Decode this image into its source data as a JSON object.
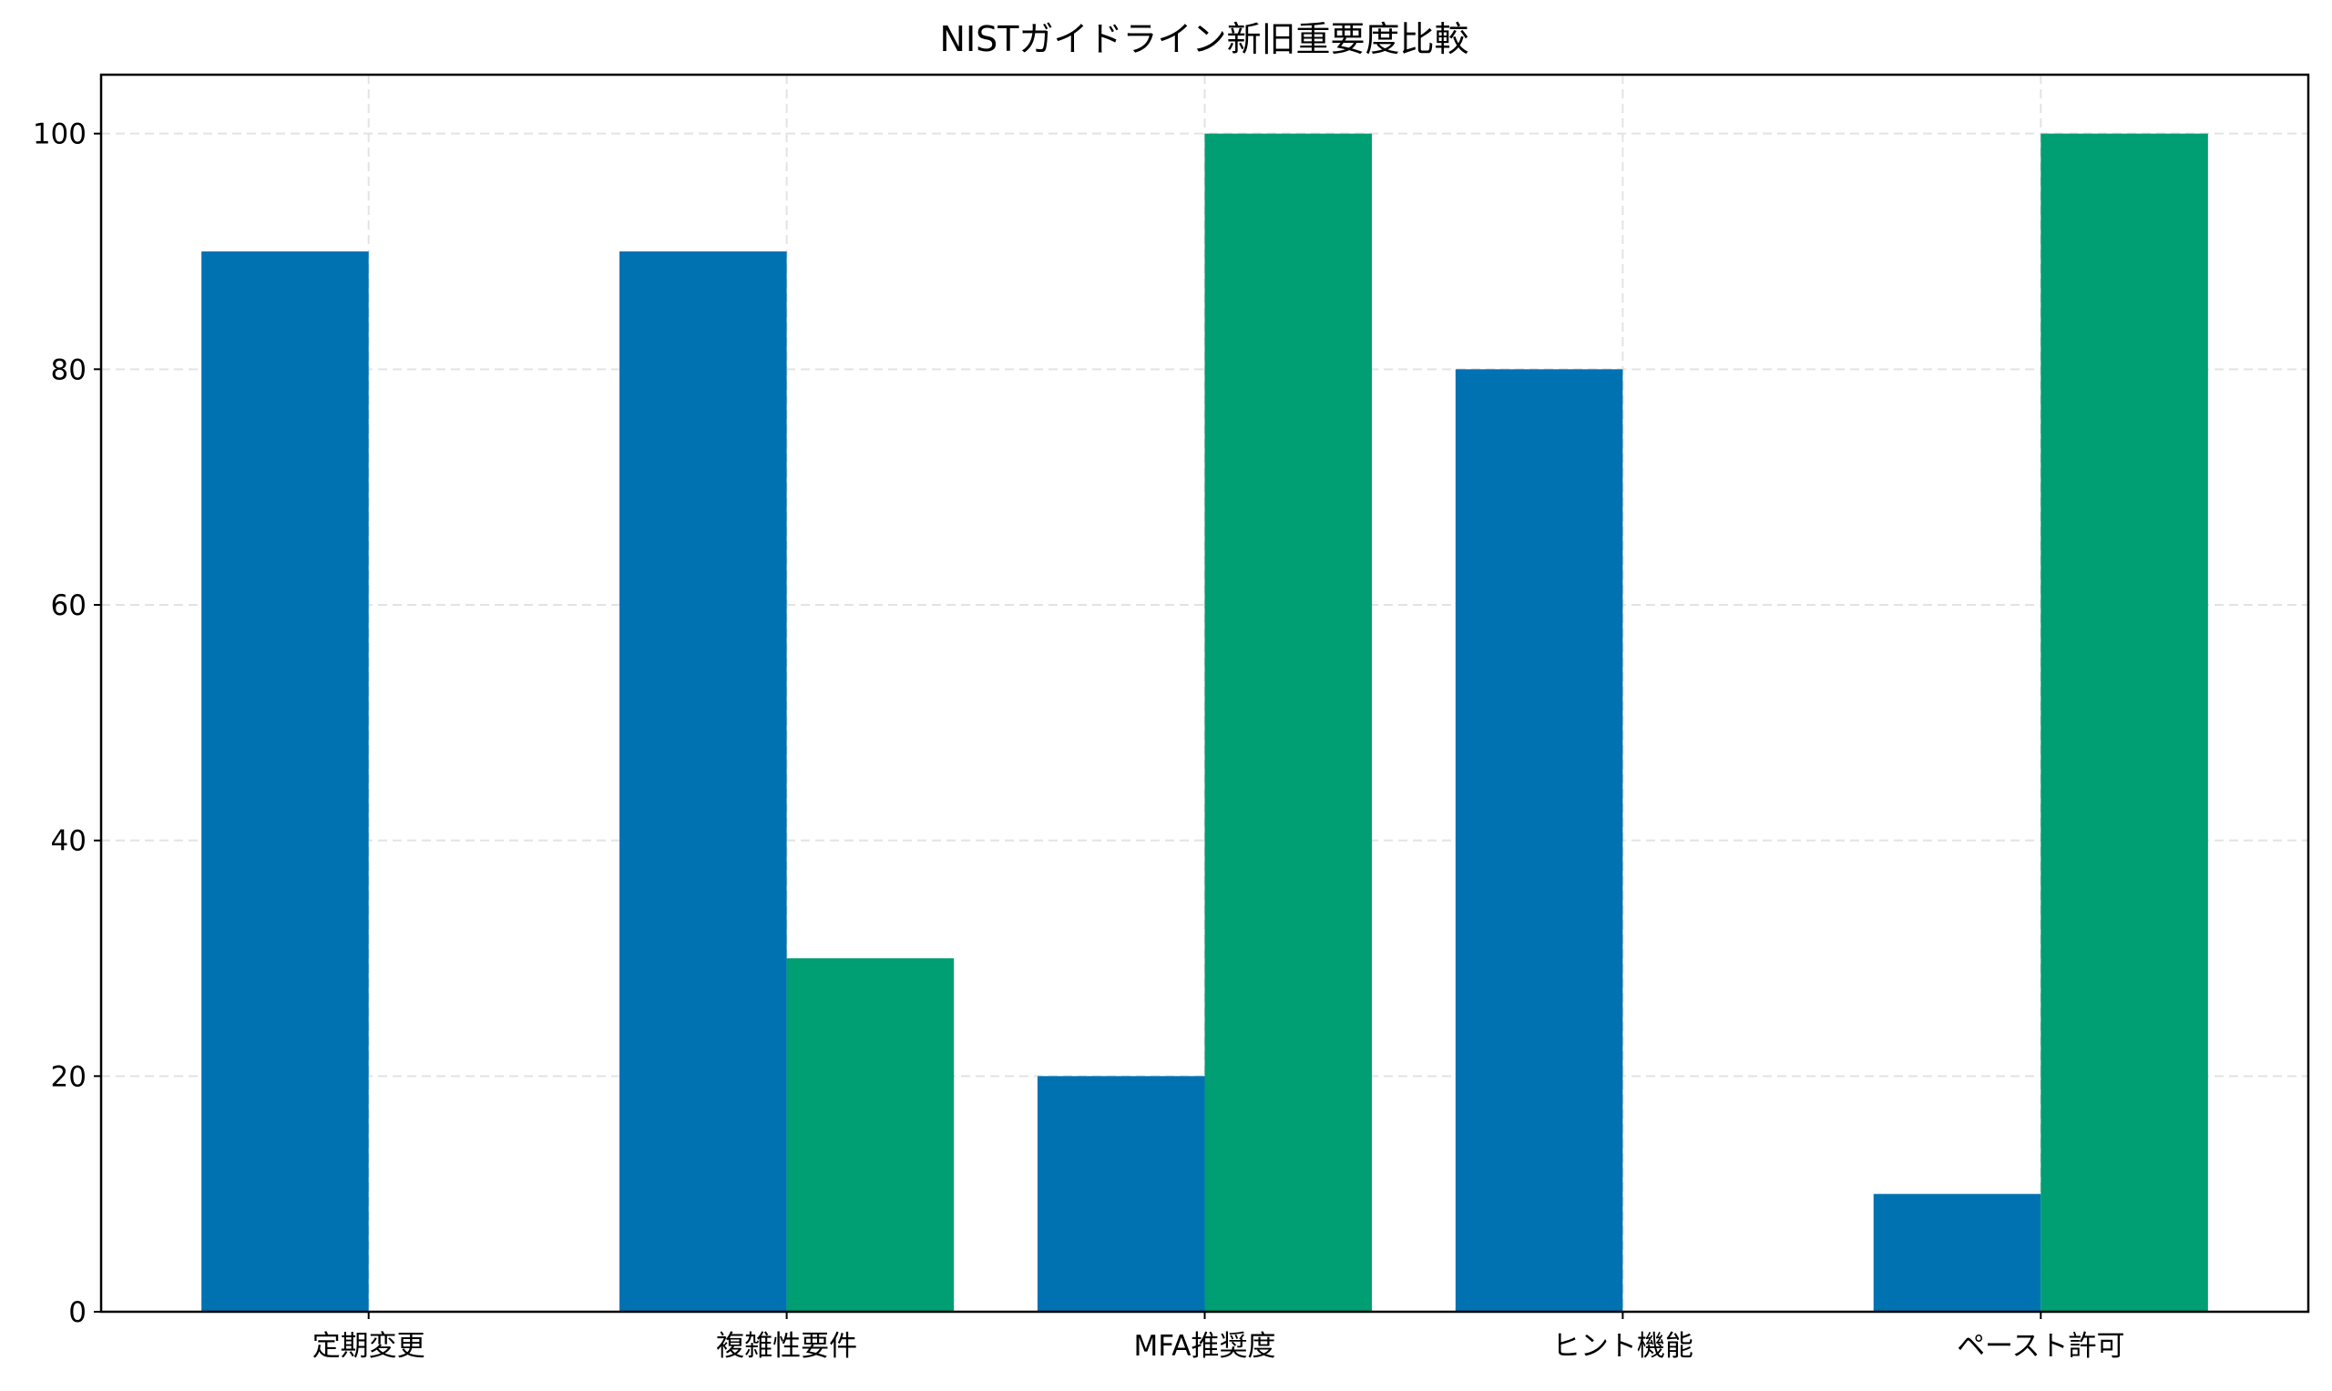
{
  "chart_data": {
    "type": "bar",
    "title": "NISTガイドライン新旧重要度比較",
    "xlabel": "",
    "ylabel": "",
    "categories": [
      "定期変更",
      "複雑性要件",
      "MFA推奨度",
      "ヒント機能",
      "ペースト許可"
    ],
    "series": [
      {
        "values": [
          90,
          90,
          20,
          80,
          10
        ],
        "color": "#0072b2"
      },
      {
        "values": [
          0,
          30,
          100,
          0,
          100
        ],
        "color": "#009e73"
      }
    ],
    "ylim": [
      0,
      105
    ],
    "yticks": [
      0,
      20,
      40,
      60,
      80,
      100
    ],
    "grid": true,
    "legend": "none"
  }
}
